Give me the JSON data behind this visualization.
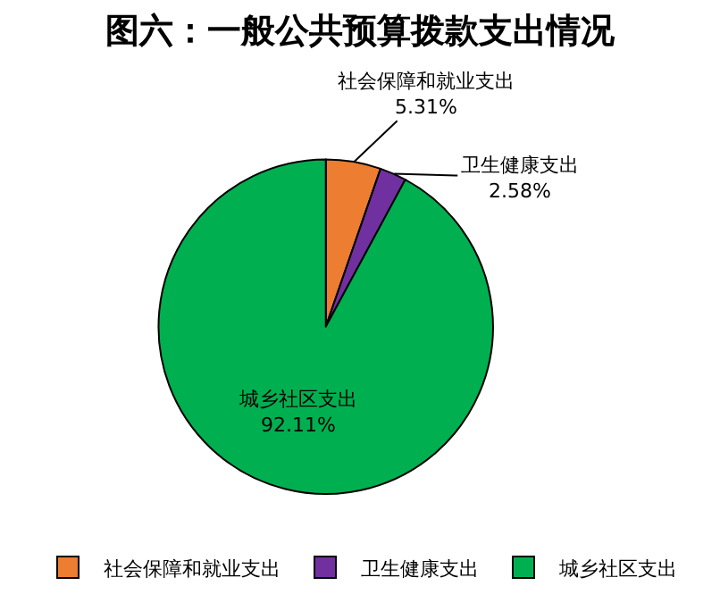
{
  "chart_data": {
    "type": "pie",
    "title": "图六：一般公共预算拨款支出情况",
    "categories": [
      "社会保障和就业支出",
      "卫生健康支出",
      "城乡社区支出"
    ],
    "values": [
      5.31,
      2.58,
      92.11
    ],
    "value_labels": [
      "5.31%",
      "2.58%",
      "92.11%"
    ],
    "colors": [
      "#ed7d31",
      "#7030a0",
      "#00b050"
    ],
    "legend": "bottom"
  }
}
